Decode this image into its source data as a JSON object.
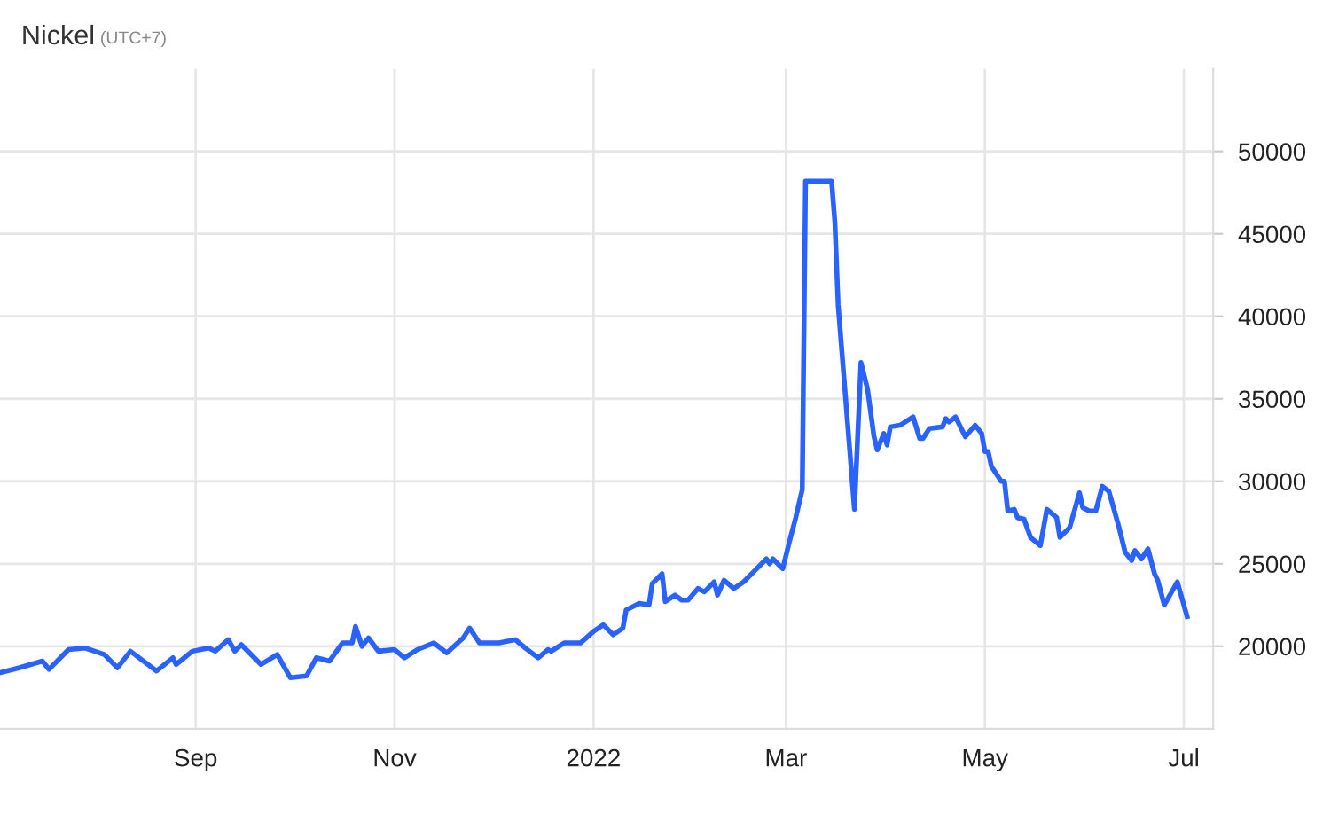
{
  "chart_data": {
    "type": "line",
    "title": "Nickel",
    "subtitle": "(UTC+7)",
    "xlim": [
      "2021-07-03",
      "2022-07-10"
    ],
    "xticks": [
      {
        "value": "2021-09-01",
        "label": "Sep"
      },
      {
        "value": "2021-11-01",
        "label": "Nov"
      },
      {
        "value": "2022-01-01",
        "label": "2022"
      },
      {
        "value": "2022-03-01",
        "label": "Mar"
      },
      {
        "value": "2022-05-01",
        "label": "May"
      },
      {
        "value": "2022-07-01",
        "label": "Jul"
      }
    ],
    "ylim": [
      15000,
      55000
    ],
    "yticks": [
      20000,
      25000,
      30000,
      35000,
      40000,
      45000,
      50000
    ],
    "grid": true,
    "legend": false,
    "series": [
      {
        "color": "#2962ff",
        "x": [
          "2021-07-03",
          "2021-07-09",
          "2021-07-16",
          "2021-07-18",
          "2021-07-24",
          "2021-07-29",
          "2021-08-04",
          "2021-08-08",
          "2021-08-12",
          "2021-08-20",
          "2021-08-25",
          "2021-08-26",
          "2021-08-31",
          "2021-09-05",
          "2021-09-07",
          "2021-09-11",
          "2021-09-13",
          "2021-09-15",
          "2021-09-21",
          "2021-09-26",
          "2021-09-30",
          "2021-10-05",
          "2021-10-08",
          "2021-10-12",
          "2021-10-16",
          "2021-10-19",
          "2021-10-20",
          "2021-10-22",
          "2021-10-24",
          "2021-10-27",
          "2021-11-01",
          "2021-11-04",
          "2021-11-08",
          "2021-11-13",
          "2021-11-17",
          "2021-11-22",
          "2021-11-24",
          "2021-11-27",
          "2021-12-03",
          "2021-12-08",
          "2021-12-11",
          "2021-12-15",
          "2021-12-18",
          "2021-12-19",
          "2021-12-23",
          "2021-12-28",
          "2022-01-01",
          "2022-01-04",
          "2022-01-07",
          "2022-01-10",
          "2022-01-11",
          "2022-01-15",
          "2022-01-18",
          "2022-01-19",
          "2022-01-22",
          "2022-01-23",
          "2022-01-26",
          "2022-01-28",
          "2022-01-30",
          "2022-02-02",
          "2022-02-04",
          "2022-02-07",
          "2022-02-08",
          "2022-02-10",
          "2022-02-13",
          "2022-02-16",
          "2022-02-19",
          "2022-02-23",
          "2022-02-24",
          "2022-02-25",
          "2022-02-28",
          "2022-03-02",
          "2022-03-04",
          "2022-03-06",
          "2022-03-07",
          "2022-03-15",
          "2022-03-16",
          "2022-03-17",
          "2022-03-22",
          "2022-03-24",
          "2022-03-26",
          "2022-03-28",
          "2022-03-29",
          "2022-03-31",
          "2022-04-01",
          "2022-04-02",
          "2022-04-05",
          "2022-04-09",
          "2022-04-11",
          "2022-04-12",
          "2022-04-14",
          "2022-04-18",
          "2022-04-19",
          "2022-04-20",
          "2022-04-22",
          "2022-04-25",
          "2022-04-28",
          "2022-04-30",
          "2022-05-01",
          "2022-05-02",
          "2022-05-03",
          "2022-05-06",
          "2022-05-07",
          "2022-05-08",
          "2022-05-10",
          "2022-05-11",
          "2022-05-13",
          "2022-05-15",
          "2022-05-18",
          "2022-05-20",
          "2022-05-23",
          "2022-05-24",
          "2022-05-27",
          "2022-05-30",
          "2022-05-31",
          "2022-06-02",
          "2022-06-04",
          "2022-06-06",
          "2022-06-08",
          "2022-06-11",
          "2022-06-13",
          "2022-06-15",
          "2022-06-16",
          "2022-06-18",
          "2022-06-19",
          "2022-06-20",
          "2022-06-22",
          "2022-06-23",
          "2022-06-25",
          "2022-06-29",
          "2022-07-02"
        ],
        "values": [
          18400,
          18700,
          19100,
          18600,
          19800,
          19900,
          19500,
          18700,
          19700,
          18500,
          19300,
          18900,
          19700,
          19900,
          19700,
          20400,
          19700,
          20100,
          18900,
          19500,
          18100,
          18200,
          19300,
          19100,
          20200,
          20200,
          21200,
          20000,
          20500,
          19700,
          19800,
          19300,
          19800,
          20200,
          19600,
          20500,
          21100,
          20200,
          20200,
          20400,
          19900,
          19300,
          19800,
          19700,
          20200,
          20200,
          20900,
          21300,
          20700,
          21100,
          22200,
          22600,
          22500,
          23800,
          24400,
          22700,
          23100,
          22800,
          22800,
          23500,
          23300,
          23900,
          23100,
          24000,
          23500,
          23900,
          24500,
          25300,
          25000,
          25300,
          24700,
          26300,
          27800,
          29500,
          48200,
          48200,
          45700,
          40700,
          28300,
          37200,
          35600,
          32700,
          31900,
          32900,
          32200,
          33300,
          33400,
          33900,
          32600,
          32600,
          33200,
          33300,
          33800,
          33600,
          33900,
          32700,
          33400,
          32900,
          31800,
          31800,
          30900,
          30000,
          30000,
          28200,
          28300,
          27800,
          27700,
          26600,
          26100,
          28300,
          27800,
          26600,
          27200,
          29300,
          28400,
          28200,
          28200,
          29700,
          29400,
          27300,
          25700,
          25200,
          25800,
          25300,
          25600,
          25900,
          24400,
          24000,
          22500,
          23900,
          21800
        ]
      }
    ]
  }
}
